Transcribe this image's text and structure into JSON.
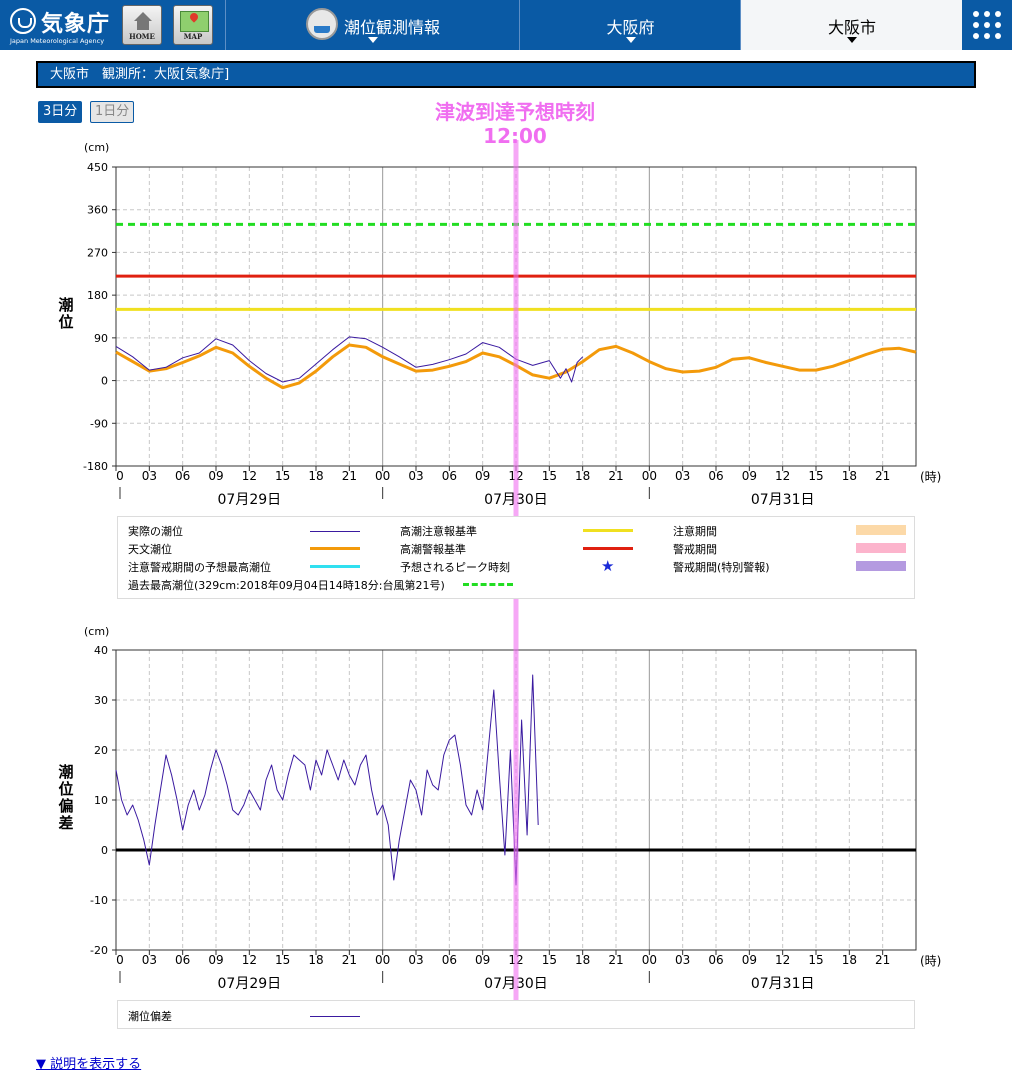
{
  "header": {
    "logo_jp": "気象庁",
    "logo_en": "Japan Meteorological Agency",
    "home_label": "HOME",
    "map_label": "MAP",
    "nav": [
      {
        "label": "潮位観測情報",
        "icon": "tide-gauge-icon"
      },
      {
        "label": "大阪府"
      },
      {
        "label": "大阪市"
      }
    ],
    "menu_icon": "grid-menu-icon"
  },
  "title_bar": "大阪市　観測所：大阪[気象庁]",
  "toggle": {
    "three_day": "3日分",
    "one_day": "1日分",
    "selected": "3日分"
  },
  "tsunami": {
    "label": "津波到達予想時刻",
    "time": "12:00",
    "color": "#f06ef0"
  },
  "unit": "(cm)",
  "hour_unit": "(時)",
  "explain_link": "▼ 説明を表示する",
  "legend_top": {
    "items": [
      {
        "label": "実際の潮位",
        "style": "thin-line",
        "color": "#3a1aa0"
      },
      {
        "label": "高潮注意報基準",
        "style": "thick-line",
        "color": "#f0e020"
      },
      {
        "label": "注意期間",
        "style": "block",
        "color": "#fcd9a8"
      },
      {
        "label": "天文潮位",
        "style": "thick-line",
        "color": "#f39a0a"
      },
      {
        "label": "高潮警報基準",
        "style": "thick-line",
        "color": "#e02010"
      },
      {
        "label": "警戒期間",
        "style": "block",
        "color": "#fcb4cc"
      },
      {
        "label": "注意警戒期間の予想最高潮位",
        "style": "thick-line",
        "color": "#30e0f0"
      },
      {
        "label": "予想されるピーク時刻",
        "style": "star",
        "color": "#1a2ad8"
      },
      {
        "label": "警戒期間(特別警報)",
        "style": "block",
        "color": "#b49ae0"
      },
      {
        "label": "過去最高潮位(329cm:2018年09月04日14時18分:台風第21号)",
        "style": "dashed",
        "color": "#22dd22"
      }
    ]
  },
  "legend_bottom": {
    "items": [
      {
        "label": "潮位偏差",
        "style": "thin-line",
        "color": "#3a1aa0"
      }
    ]
  },
  "chart_data": [
    {
      "type": "line",
      "ylabel": "潮位",
      "ylim": [
        -180,
        450
      ],
      "yticks": [
        450,
        360,
        270,
        180,
        90,
        0,
        -90,
        -180
      ],
      "xlim": [
        0,
        72
      ],
      "xtick_labels": [
        "0",
        "03",
        "06",
        "09",
        "12",
        "15",
        "18",
        "21",
        "00",
        "03",
        "06",
        "09",
        "12",
        "15",
        "18",
        "21",
        "00",
        "03",
        "06",
        "09",
        "12",
        "15",
        "18",
        "21"
      ],
      "dates": [
        "07月29日",
        "07月30日",
        "07月31日"
      ],
      "hlines": [
        {
          "name": "過去最高潮位",
          "value": 329,
          "color": "#22dd22",
          "style": "dashed"
        },
        {
          "name": "高潮警報基準",
          "value": 220,
          "color": "#e02010",
          "style": "solid"
        },
        {
          "name": "高潮注意報基準",
          "value": 150,
          "color": "#f0e020",
          "style": "solid"
        }
      ],
      "series": [
        {
          "name": "天文潮位",
          "color": "#f39a0a",
          "x": [
            0,
            1.5,
            3,
            4.5,
            6,
            7.5,
            9,
            10.5,
            12,
            13.5,
            15,
            16.5,
            18,
            19.5,
            21,
            22.5,
            24,
            25.5,
            27,
            28.5,
            30,
            31.5,
            33,
            34.5,
            36,
            37.5,
            39,
            40.5,
            42,
            43.5,
            45,
            46.5,
            48,
            49.5,
            51,
            52.5,
            54,
            55.5,
            57,
            58.5,
            60,
            61.5,
            63,
            64.5,
            66,
            67.5,
            69,
            70.5,
            72
          ],
          "y": [
            60,
            40,
            20,
            25,
            38,
            52,
            70,
            58,
            30,
            5,
            -15,
            -5,
            20,
            50,
            75,
            70,
            50,
            35,
            20,
            22,
            30,
            40,
            58,
            50,
            32,
            12,
            5,
            18,
            40,
            65,
            72,
            58,
            40,
            25,
            18,
            20,
            28,
            45,
            48,
            38,
            30,
            22,
            22,
            30,
            42,
            55,
            66,
            68,
            60
          ]
        },
        {
          "name": "実際の潮位",
          "color": "#3a1aa0",
          "x": [
            0,
            1.5,
            3,
            4.5,
            6,
            7.5,
            9,
            10.5,
            12,
            13.5,
            15,
            16.5,
            18,
            19.5,
            21,
            22.5,
            24,
            25.5,
            27,
            28.5,
            30,
            31.5,
            33,
            34.5,
            36,
            37.5,
            39,
            40,
            40.5,
            41,
            41.5,
            42
          ],
          "y": [
            72,
            50,
            22,
            28,
            48,
            58,
            88,
            75,
            42,
            15,
            -3,
            5,
            35,
            65,
            92,
            88,
            70,
            50,
            28,
            34,
            44,
            56,
            80,
            70,
            45,
            32,
            42,
            5,
            25,
            -3,
            38,
            50
          ]
        }
      ]
    },
    {
      "type": "line",
      "ylabel": "潮位偏差",
      "ylim": [
        -20,
        40
      ],
      "yticks": [
        40,
        30,
        20,
        10,
        0,
        -10,
        -20
      ],
      "xlim": [
        0,
        72
      ],
      "xtick_labels": [
        "0",
        "03",
        "06",
        "09",
        "12",
        "15",
        "18",
        "21",
        "00",
        "03",
        "06",
        "09",
        "12",
        "15",
        "18",
        "21",
        "00",
        "03",
        "06",
        "09",
        "12",
        "15",
        "18",
        "21"
      ],
      "dates": [
        "07月29日",
        "07月30日",
        "07月31日"
      ],
      "hlines": [
        {
          "value": 0,
          "color": "#000000",
          "style": "solid"
        }
      ],
      "series": [
        {
          "name": "潮位偏差",
          "color": "#3a1aa0",
          "x": [
            0,
            0.5,
            1,
            1.5,
            2,
            2.5,
            3,
            3.5,
            4,
            4.5,
            5,
            5.5,
            6,
            6.5,
            7,
            7.5,
            8,
            8.5,
            9,
            9.5,
            10,
            10.5,
            11,
            11.5,
            12,
            12.5,
            13,
            13.5,
            14,
            14.5,
            15,
            15.5,
            16,
            16.5,
            17,
            17.5,
            18,
            18.5,
            19,
            19.5,
            20,
            20.5,
            21,
            21.5,
            22,
            22.5,
            23,
            23.5,
            24,
            24.5,
            25,
            25.5,
            26,
            26.5,
            27,
            27.5,
            28,
            28.5,
            29,
            29.5,
            30,
            30.5,
            31,
            31.5,
            32,
            32.5,
            33,
            33.5,
            34,
            34.5,
            35,
            35.5,
            36,
            36.5,
            37,
            37.5,
            38,
            38.5,
            39,
            39.5,
            40,
            40.5,
            41,
            41.5,
            42
          ],
          "y": [
            16,
            10,
            7,
            9,
            6,
            2,
            -3,
            5,
            12,
            19,
            15,
            10,
            4,
            9,
            12,
            8,
            11,
            16,
            20,
            17,
            13,
            8,
            7,
            9,
            12,
            10,
            8,
            14,
            17,
            12,
            10,
            15,
            19,
            18,
            17,
            12,
            18,
            15,
            20,
            17,
            14,
            18,
            15,
            13,
            17,
            19,
            12,
            7,
            9,
            5,
            -6,
            2,
            8,
            14,
            12,
            7,
            16,
            13,
            12,
            19,
            22,
            23,
            17,
            9,
            7,
            12,
            8,
            20,
            32,
            15,
            -1,
            20,
            -7,
            26,
            3,
            35,
            5,
            null,
            null,
            null,
            null,
            null,
            null,
            null,
            null
          ]
        }
      ]
    }
  ]
}
